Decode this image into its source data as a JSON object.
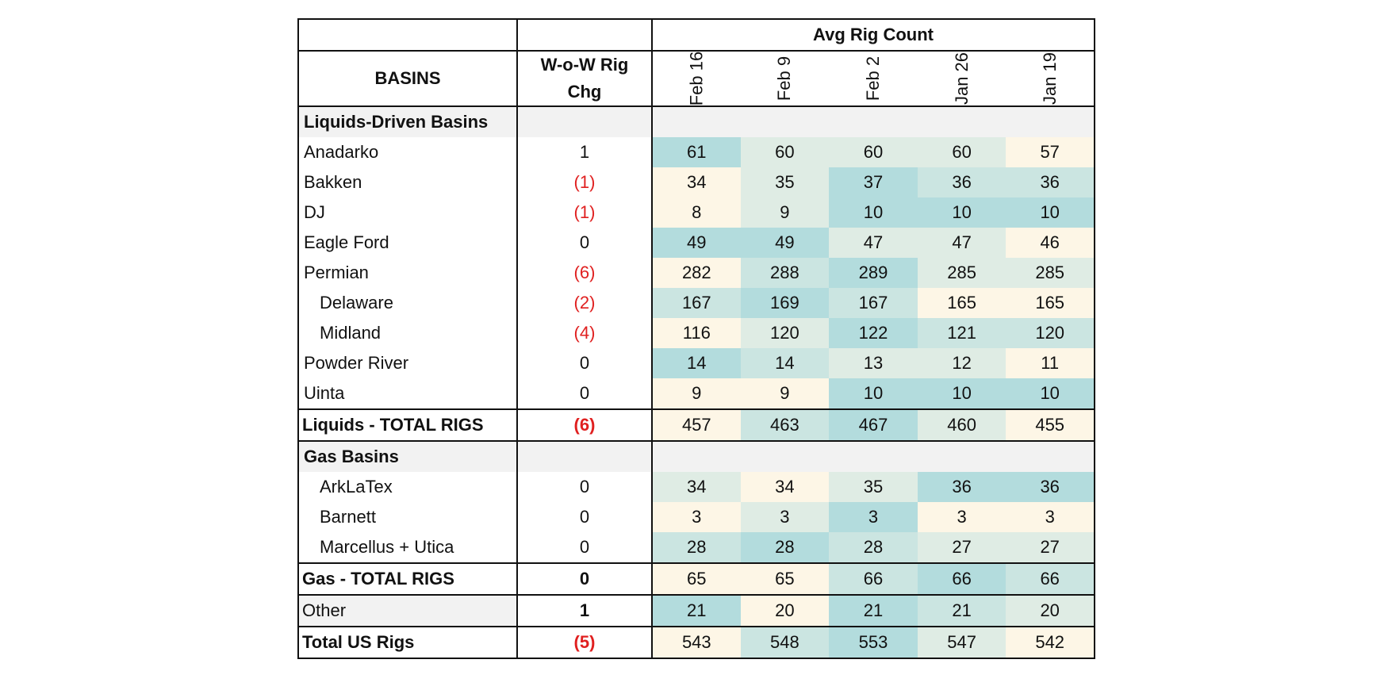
{
  "header": {
    "avg_title": "Avg Rig Count",
    "basins_label": "BASINS",
    "chg_label_line1": "W-o-W Rig",
    "chg_label_line2": "Chg",
    "dates": [
      "Feb 16",
      "Feb 9",
      "Feb 2",
      "Jan 26",
      "Jan 19"
    ]
  },
  "sections": {
    "liquids_title": "Liquids-Driven Basins",
    "gas_title": "Gas Basins"
  },
  "liquids_rows": [
    {
      "name": "Anadarko",
      "chg": "1",
      "values": [
        "61",
        "60",
        "60",
        "60",
        "57"
      ]
    },
    {
      "name": "Bakken",
      "chg": "(1)",
      "values": [
        "34",
        "35",
        "37",
        "36",
        "36"
      ]
    },
    {
      "name": "DJ",
      "chg": "(1)",
      "values": [
        "8",
        "9",
        "10",
        "10",
        "10"
      ]
    },
    {
      "name": "Eagle Ford",
      "chg": "0",
      "values": [
        "49",
        "49",
        "47",
        "47",
        "46"
      ]
    },
    {
      "name": "Permian",
      "chg": "(6)",
      "values": [
        "282",
        "288",
        "289",
        "285",
        "285"
      ]
    },
    {
      "name": "Delaware",
      "chg": "(2)",
      "values": [
        "167",
        "169",
        "167",
        "165",
        "165"
      ]
    },
    {
      "name": "Midland",
      "chg": "(4)",
      "values": [
        "116",
        "120",
        "122",
        "121",
        "120"
      ]
    },
    {
      "name": "Powder River",
      "chg": "0",
      "values": [
        "14",
        "14",
        "13",
        "12",
        "11"
      ]
    },
    {
      "name": "Uinta",
      "chg": "0",
      "values": [
        "9",
        "9",
        "10",
        "10",
        "10"
      ]
    }
  ],
  "liquids_total": {
    "name": "Liquids - TOTAL RIGS",
    "chg": "(6)",
    "values": [
      "457",
      "463",
      "467",
      "460",
      "455"
    ]
  },
  "gas_rows": [
    {
      "name": "ArkLaTex",
      "chg": "0",
      "values": [
        "34",
        "34",
        "35",
        "36",
        "36"
      ]
    },
    {
      "name": "Barnett",
      "chg": "0",
      "values": [
        "3",
        "3",
        "3",
        "3",
        "3"
      ]
    },
    {
      "name": "Marcellus + Utica",
      "chg": "0",
      "values": [
        "28",
        "28",
        "28",
        "27",
        "27"
      ]
    }
  ],
  "gas_total": {
    "name": "Gas - TOTAL RIGS",
    "chg": "0",
    "values": [
      "65",
      "65",
      "66",
      "66",
      "66"
    ]
  },
  "other_row": {
    "name": "Other",
    "chg": "1",
    "values": [
      "21",
      "20",
      "21",
      "21",
      "20"
    ]
  },
  "us_total": {
    "name": "Total US Rigs",
    "chg": "(5)",
    "values": [
      "543",
      "548",
      "553",
      "547",
      "542"
    ]
  },
  "colors": {
    "heat_high": "#b3dcdd",
    "heat_mid_high": "#cbe5e1",
    "heat_mid": "#dfece4",
    "heat_low": "#fdf6e6",
    "negative_text": "#e02020",
    "section_bg": "#f2f2f2"
  },
  "heatmap_shading": {
    "Anadarko": [
      "high",
      "mid",
      "mid",
      "mid",
      "low"
    ],
    "Bakken": [
      "low",
      "mid",
      "high",
      "midhigh",
      "midhigh"
    ],
    "DJ": [
      "low",
      "mid",
      "high",
      "high",
      "high"
    ],
    "Eagle Ford": [
      "high",
      "high",
      "mid",
      "mid",
      "low"
    ],
    "Permian": [
      "low",
      "midhigh",
      "high",
      "mid",
      "mid"
    ],
    "Delaware": [
      "midhigh",
      "high",
      "midhigh",
      "low",
      "low"
    ],
    "Midland": [
      "low",
      "mid",
      "high",
      "midhigh",
      "midhigh"
    ],
    "Powder River": [
      "high",
      "midhigh",
      "mid",
      "mid",
      "low"
    ],
    "Uinta": [
      "low",
      "low",
      "high",
      "high",
      "high"
    ],
    "Liquids - TOTAL RIGS": [
      "low",
      "midhigh",
      "high",
      "mid",
      "low"
    ],
    "ArkLaTex": [
      "mid",
      "low",
      "mid",
      "high",
      "high"
    ],
    "Barnett": [
      "low",
      "mid",
      "high",
      "low",
      "low"
    ],
    "Marcellus + Utica": [
      "midhigh",
      "high",
      "midhigh",
      "mid",
      "mid"
    ],
    "Gas - TOTAL RIGS": [
      "low",
      "low",
      "midhigh",
      "high",
      "midhigh"
    ],
    "Other": [
      "high",
      "low",
      "high",
      "midhigh",
      "mid"
    ],
    "Total US Rigs": [
      "low",
      "midhigh",
      "high",
      "mid",
      "low"
    ]
  }
}
